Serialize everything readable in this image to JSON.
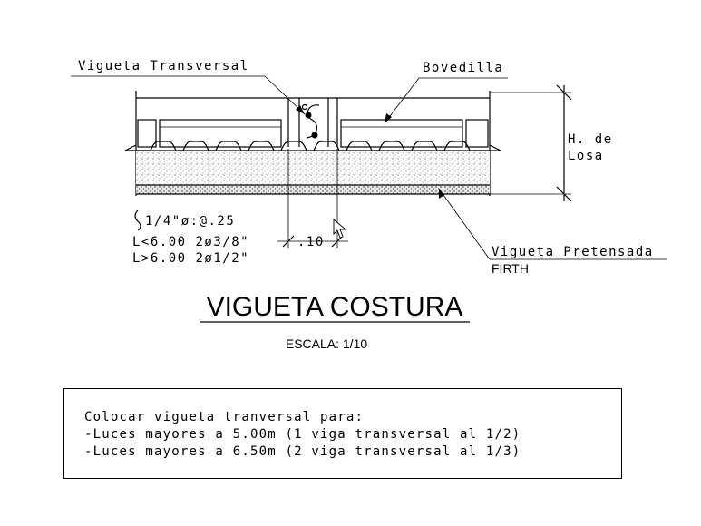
{
  "labels": {
    "vigueta_transversal": "Vigueta Transversal",
    "bovedilla": "Bovedilla",
    "h_de": "H. de",
    "losa": "Losa",
    "vigueta_pretensada": "Vigueta Pretensada",
    "firth": "FIRTH",
    "stirrup_spec": "1/4\"ø:@.25",
    "rebar_short": "L<6.00  2ø3/8\"",
    "rebar_long": "L>6.00  2ø1/2\"",
    "dimension": ".10"
  },
  "title": {
    "main": "VIGUETA COSTURA",
    "scale": "ESCALA: 1/10"
  },
  "note": {
    "lines": [
      "Colocar vigueta tranversal para:",
      "-Luces mayores a 5.00m (1 viga transversal al 1/2)",
      "-Luces mayores a 6.50m (2 viga transversal al 1/3)"
    ]
  }
}
